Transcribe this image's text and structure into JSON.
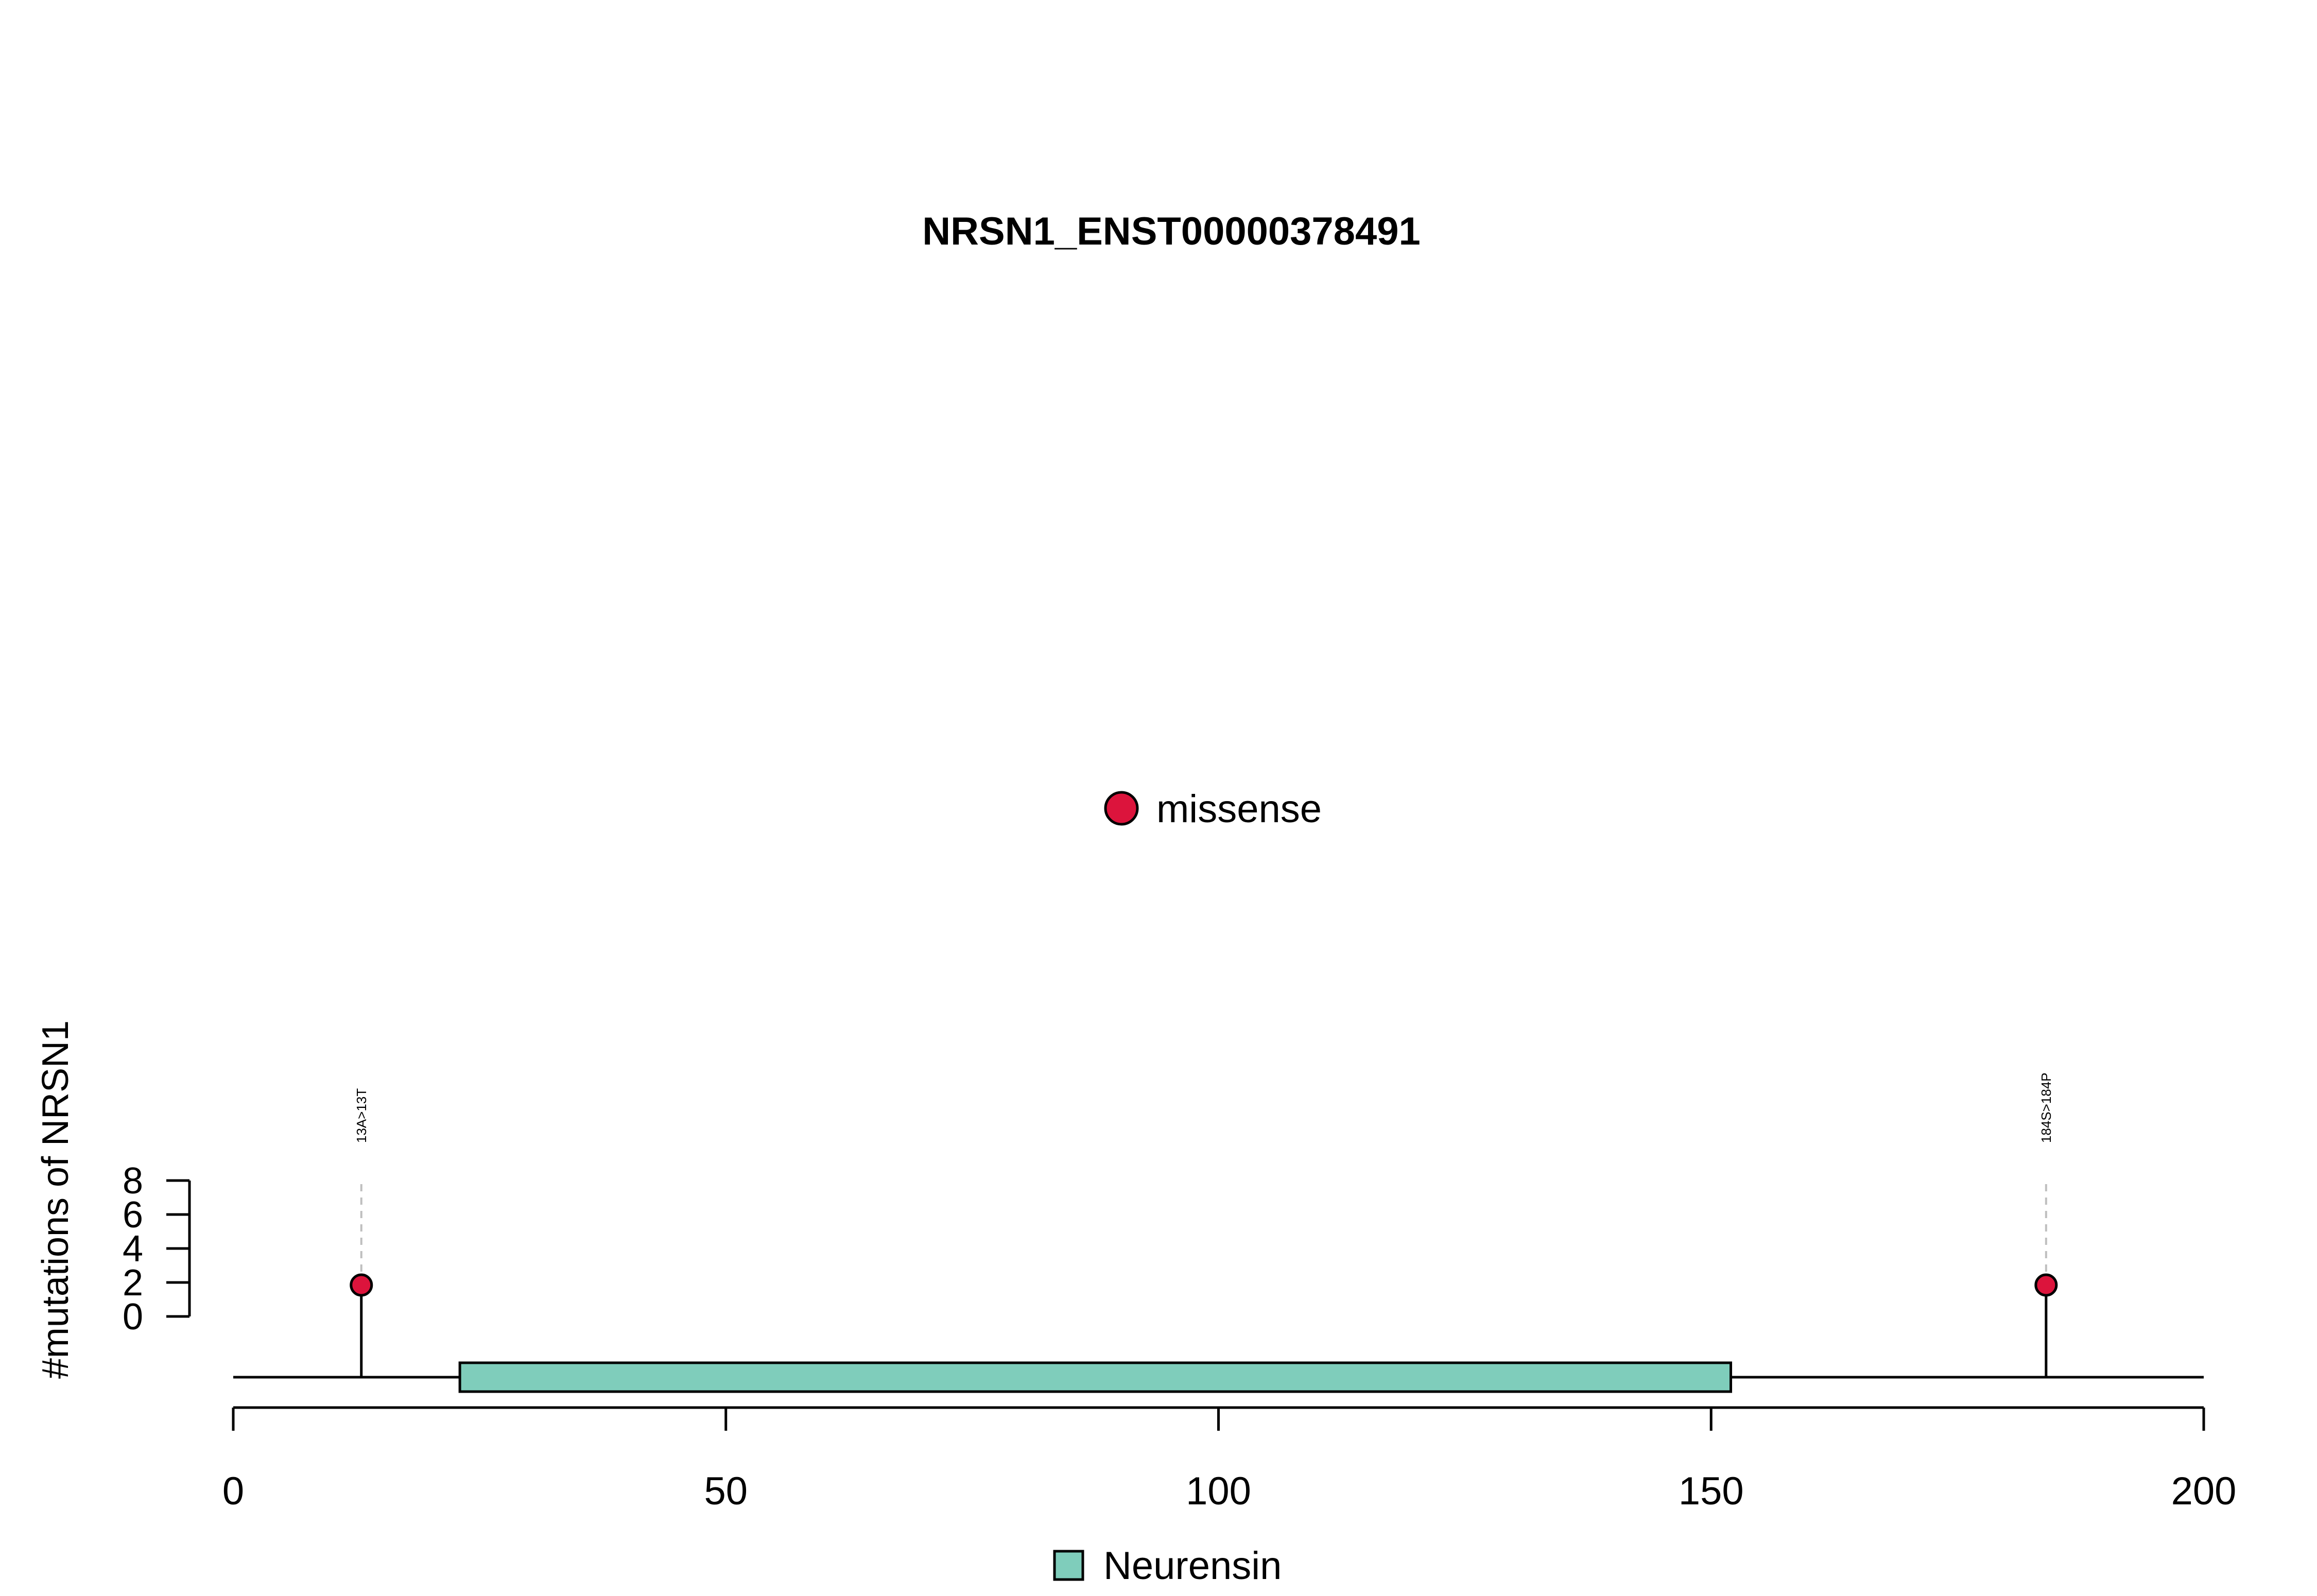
{
  "chart_data": {
    "type": "lollipop",
    "title": "NRSN1_ENST00000378491",
    "xlabel": "",
    "ylabel": "#mutations of NRSN1",
    "xlim": [
      0,
      200
    ],
    "x_ticks": [
      0,
      50,
      100,
      150,
      200
    ],
    "x_tick_labels": [
      "0",
      "50",
      "100",
      "150",
      "200"
    ],
    "ylim": [
      0,
      8
    ],
    "y_ticks": [
      0,
      2,
      4,
      6,
      8
    ],
    "y_tick_labels": [
      "0",
      "2",
      "4",
      "6",
      "8"
    ],
    "protein_length": 200,
    "domains": [
      {
        "name": "Neurensin",
        "start": 23,
        "end": 152,
        "color": "#7fcdbb"
      }
    ],
    "mutations": [
      {
        "position": 13,
        "count": 1,
        "label": "13A>13T",
        "type": "missense"
      },
      {
        "position": 184,
        "count": 1,
        "label": "184S>184P",
        "type": "missense"
      }
    ],
    "mutation_legend": [
      {
        "type": "missense",
        "label": "missense",
        "color": "#dc143c"
      }
    ],
    "domain_legend": [
      {
        "name": "Neurensin",
        "label": "Neurensin",
        "color": "#7fcdbb"
      }
    ]
  }
}
